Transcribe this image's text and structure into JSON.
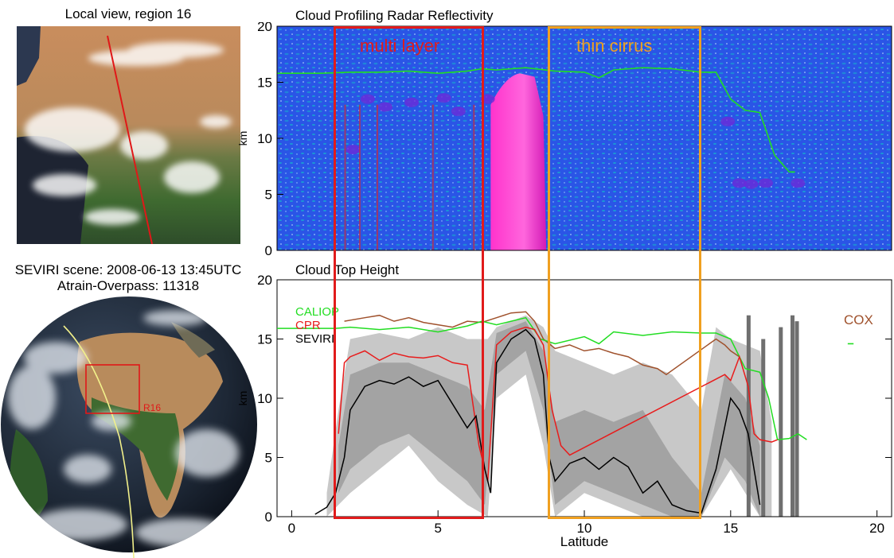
{
  "left": {
    "local_view_title": "Local view, region 16",
    "scene_line": "SEVIRI scene: 2008-06-13 13:45UTC",
    "overpass_line": "Atrain-Overpass: 11318",
    "region_label": "R16"
  },
  "colors": {
    "caliop": "#22dd22",
    "cpr": "#e81c1c",
    "seviri": "#000000",
    "cox": "#a0522d",
    "multi_layer_box": "#e11b1b",
    "thin_cirrus_box": "#f0a020",
    "radar_background": "#2a55e6",
    "radar_cloud": "#ff33cc"
  },
  "chart_data": [
    {
      "type": "heatmap",
      "title": "Cloud Profiling Radar Reflectivity",
      "ylabel": "km",
      "xlim": [
        -0.5,
        20.5
      ],
      "ylim": [
        0,
        20
      ],
      "yticks": [
        "0",
        "5",
        "10",
        "15",
        "20"
      ],
      "annotations": [
        "multi layer",
        "thin cirrus"
      ],
      "caliop_x": [
        -0.5,
        1,
        2,
        3,
        4,
        5,
        6,
        6.5,
        7,
        8,
        9,
        10,
        10.5,
        11,
        12,
        13,
        14,
        14.5,
        15,
        15.5,
        16,
        16.5,
        17,
        17.2
      ],
      "caliop_y": [
        15.8,
        15.8,
        15.9,
        15.9,
        16,
        15.8,
        16,
        16.2,
        16.1,
        16.3,
        16,
        15.9,
        15.4,
        16.1,
        16.3,
        16.2,
        15.9,
        15.9,
        13.5,
        12.5,
        12.3,
        8.5,
        7,
        7
      ]
    },
    {
      "type": "line",
      "title": "Cloud Top Height",
      "xlabel": "Latitude",
      "ylabel": "km",
      "xlim": [
        -0.5,
        20.5
      ],
      "ylim": [
        0,
        20
      ],
      "xticks": [
        "0",
        "5",
        "10",
        "15",
        "20"
      ],
      "yticks": [
        "0",
        "5",
        "10",
        "15",
        "20"
      ],
      "legend": [
        "CALIOP",
        "CPR",
        "SEVIRI"
      ],
      "corner_label": "COX",
      "annotations": [
        {
          "label": "multi layer",
          "x_range": [
            1.5,
            6.7
          ]
        },
        {
          "label": "thin cirrus",
          "x_range": [
            8.8,
            14
          ]
        }
      ],
      "series": [
        {
          "name": "CALIOP",
          "x": [
            -0.5,
            1.5,
            2,
            3,
            4,
            5,
            6,
            6.5,
            7,
            7.5,
            8,
            8.5,
            9,
            10,
            10.5,
            11,
            12,
            13,
            14,
            14.5,
            15,
            15.5,
            16,
            16.3,
            16.6,
            17,
            17.3,
            17.6
          ],
          "y": [
            15.9,
            15.9,
            16,
            15.8,
            16,
            15.6,
            16.1,
            16.5,
            16.2,
            16.5,
            16.8,
            15,
            14.6,
            15.2,
            14.6,
            15.6,
            15.3,
            15.6,
            15.5,
            15.5,
            15,
            12.5,
            12.2,
            10,
            6.5,
            6.6,
            7,
            6.5
          ]
        },
        {
          "name": "CPR",
          "x": [
            1.6,
            1.8,
            2,
            2.5,
            3,
            3.5,
            4,
            4.5,
            5,
            5.5,
            6,
            6.4,
            6.7,
            7,
            7.5,
            8,
            8.3,
            8.6,
            8.9,
            9.2,
            9.5,
            14.8,
            15,
            15.3,
            15.6,
            15.8,
            16,
            16.4,
            16.6
          ],
          "y": [
            7,
            13,
            13.5,
            14,
            13.2,
            13.8,
            13.5,
            13.4,
            13.6,
            13,
            12.8,
            6,
            3,
            14.5,
            15.6,
            16,
            15.8,
            14.5,
            9,
            6,
            5.2,
            12,
            11.5,
            13.5,
            11,
            7,
            6.5,
            6.3,
            6.5
          ]
        },
        {
          "name": "SEVIRI",
          "x": [
            0.8,
            1.2,
            1.5,
            1.8,
            2,
            2.5,
            3,
            3.5,
            4,
            4.5,
            5,
            5.5,
            6,
            6.3,
            6.6,
            6.8,
            7,
            7.5,
            8,
            8.3,
            8.6,
            8.8,
            9,
            9.5,
            10,
            10.5,
            11,
            11.5,
            12,
            12.5,
            13,
            13.5,
            14,
            14.5,
            15,
            15.3,
            15.6,
            16
          ],
          "y": [
            0.2,
            0.8,
            2,
            5,
            9,
            11,
            11.5,
            11.2,
            11.8,
            11,
            11.5,
            9.5,
            7.5,
            8.5,
            4,
            2,
            13,
            15,
            15.8,
            15,
            12,
            5,
            3,
            4.5,
            5,
            4,
            5,
            4.2,
            2,
            3,
            1,
            0.5,
            0.3,
            4,
            10,
            9,
            7,
            1
          ]
        },
        {
          "name": "COX",
          "x": [
            1.8,
            2.5,
            3,
            3.5,
            4,
            4.5,
            5,
            5.5,
            6,
            6.5,
            7,
            7.5,
            8,
            8.3,
            8.6,
            9,
            9.5,
            10,
            10.5,
            11,
            11.5,
            12,
            12.5,
            12.8,
            14.5,
            14.8,
            15,
            15.3
          ],
          "y": [
            16.5,
            16.8,
            17,
            16.5,
            16.8,
            16.4,
            16.2,
            16,
            16.5,
            16.4,
            16.8,
            17.2,
            17.3,
            16.5,
            15,
            14.2,
            14.5,
            14,
            14.2,
            13.8,
            13.5,
            12.8,
            12.5,
            12,
            15,
            14.5,
            14,
            13.5
          ]
        }
      ]
    }
  ]
}
